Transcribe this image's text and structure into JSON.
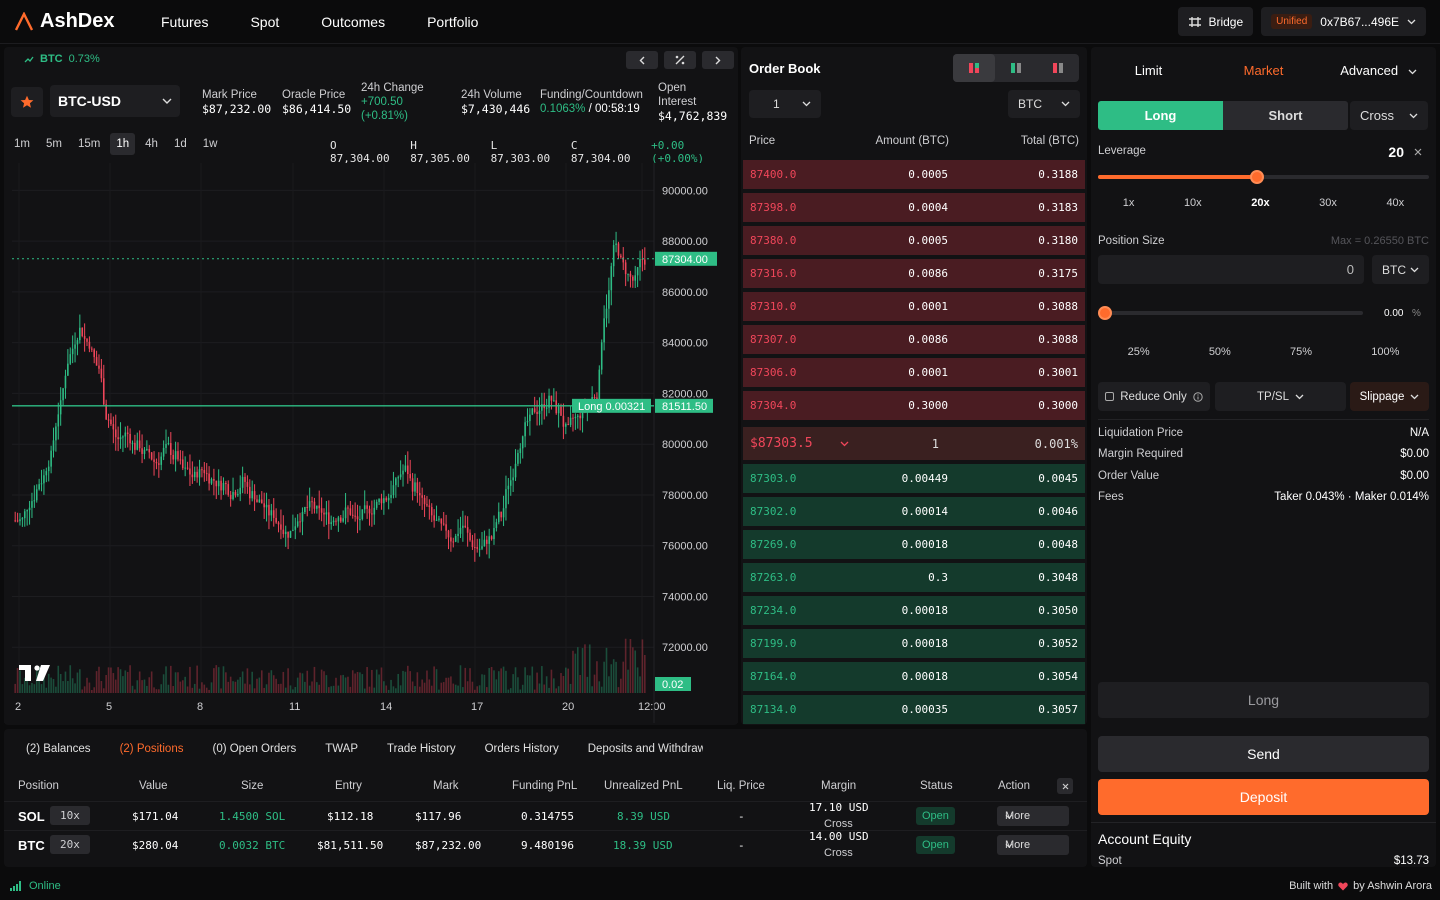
{
  "nav": {
    "brand": "AshDex",
    "links": [
      "Futures",
      "Spot",
      "Outcomes",
      "Portfolio"
    ],
    "bridge_label": "Bridge",
    "unified_label": "Unified",
    "wallet_address": "0x7B67...496E"
  },
  "ticker": {
    "symbol": "BTC",
    "change": "0.73%"
  },
  "market": {
    "pair": "BTC-USD",
    "mark_price_label": "Mark Price",
    "mark_price": "$87,232.00",
    "oracle_price_label": "Oracle Price",
    "oracle_price": "$86,414.50",
    "change_label": "24h Change",
    "change_value": "+700.50",
    "change_pct": "(+0.81%)",
    "volume_label": "24h Volume",
    "volume": "$7,430,446",
    "funding_label": "Funding/Countdown",
    "funding_rate": "0.1063%",
    "countdown": "/ 00:58:19",
    "oi_label_1": "Open",
    "oi_label_2": "Interest",
    "open_interest": "$4,762,839"
  },
  "timeframes": [
    "1m",
    "5m",
    "15m",
    "1h",
    "4h",
    "1d",
    "1w"
  ],
  "active_timeframe": "1h",
  "ohlc": {
    "o": "O 87,304.00",
    "h": "H 87,305.00",
    "l": "L 87,303.00",
    "c": "C 87,304.00",
    "chg": "+0.00 (+0.00%)"
  },
  "chart_data": {
    "type": "candlestick",
    "y_ticks": [
      "90000.00",
      "88000.00",
      "86000.00",
      "84000.00",
      "82000.00",
      "80000.00",
      "78000.00",
      "76000.00",
      "74000.00",
      "72000.00"
    ],
    "ylim": [
      70000,
      91000
    ],
    "x_ticks": [
      "2",
      "5",
      "8",
      "11",
      "14",
      "17",
      "20",
      "12:00"
    ],
    "close": [
      77000,
      77800,
      78600,
      79500,
      81500,
      83500,
      84500,
      84000,
      83000,
      81000,
      80200,
      80400,
      79900,
      79600,
      79300,
      79800,
      79500,
      78900,
      78700,
      79000,
      78600,
      78400,
      78100,
      78500,
      78000,
      77700,
      77200,
      76900,
      76500,
      77200,
      77500,
      77300,
      77100,
      77200,
      77400,
      77000,
      77300,
      77600,
      77900,
      78400,
      79000,
      78300,
      77600,
      77000,
      76600,
      76300,
      76800,
      76100,
      75900,
      76300,
      77200,
      78600,
      80100,
      80900,
      81400,
      81700,
      81300,
      80500,
      81000,
      81500,
      82000,
      85500,
      87800,
      86900,
      86400,
      87300
    ],
    "current_price": "87304.00",
    "current_price_value": 87304,
    "position_line_label": "Long 0.00321",
    "position_line_price": "81511.50",
    "position_line_value": 81511.5,
    "volume_label": "0.02"
  },
  "orderbook": {
    "title": "Order Book",
    "tick": "1",
    "unit": "BTC",
    "headers": {
      "price": "Price",
      "amount": "Amount (BTC)",
      "total": "Total (BTC)"
    },
    "asks": [
      {
        "price": "87400.0",
        "amount": "0.0005",
        "total": "0.3188"
      },
      {
        "price": "87398.0",
        "amount": "0.0004",
        "total": "0.3183"
      },
      {
        "price": "87380.0",
        "amount": "0.0005",
        "total": "0.3180"
      },
      {
        "price": "87316.0",
        "amount": "0.0086",
        "total": "0.3175"
      },
      {
        "price": "87310.0",
        "amount": "0.0001",
        "total": "0.3088"
      },
      {
        "price": "87307.0",
        "amount": "0.0086",
        "total": "0.3088"
      },
      {
        "price": "87306.0",
        "amount": "0.0001",
        "total": "0.3001"
      },
      {
        "price": "87304.0",
        "amount": "0.3000",
        "total": "0.3000"
      }
    ],
    "spread": {
      "price": "$87303.5",
      "value": "1",
      "pct": "0.001%"
    },
    "bids": [
      {
        "price": "87303.0",
        "amount": "0.00449",
        "total": "0.0045"
      },
      {
        "price": "87302.0",
        "amount": "0.00014",
        "total": "0.0046"
      },
      {
        "price": "87269.0",
        "amount": "0.00018",
        "total": "0.0048"
      },
      {
        "price": "87263.0",
        "amount": "0.3",
        "total": "0.3048"
      },
      {
        "price": "87234.0",
        "amount": "0.00018",
        "total": "0.3050"
      },
      {
        "price": "87199.0",
        "amount": "0.00018",
        "total": "0.3052"
      },
      {
        "price": "87164.0",
        "amount": "0.00018",
        "total": "0.3054"
      },
      {
        "price": "87134.0",
        "amount": "0.00035",
        "total": "0.3057"
      }
    ]
  },
  "order": {
    "tabs": [
      "Limit",
      "Market",
      "Advanced"
    ],
    "long_label": "Long",
    "short_label": "Short",
    "margin_mode": "Cross",
    "leverage_label": "Leverage",
    "leverage_value": "20",
    "leverage_fraction": 0.48,
    "leverage_marks": [
      "1x",
      "10x",
      "20x",
      "30x",
      "40x"
    ],
    "position_size_label": "Position Size",
    "max_label": "Max = 0.26550 BTC",
    "size_value": "0",
    "size_unit": "BTC",
    "size_pct": "0.00",
    "size_pct_symbol": "%",
    "pct_marks": [
      "25%",
      "50%",
      "75%",
      "100%"
    ],
    "reduce_only_label": "Reduce Only",
    "tpsl_label": "TP/SL",
    "slippage_label": "Slippage",
    "info": [
      {
        "k": "Liquidation Price",
        "v": "N/A"
      },
      {
        "k": "Margin Required",
        "v": "$0.00"
      },
      {
        "k": "Order Value",
        "v": "$0.00"
      },
      {
        "k": "Fees",
        "v": "Taker 0.043% · Maker 0.014%"
      }
    ],
    "submit_label": "Long",
    "send_label": "Send",
    "deposit_label": "Deposit",
    "equity_label": "Account Equity",
    "spot_label": "Spot",
    "spot_value": "$13.73"
  },
  "bottom": {
    "tabs": [
      "(2) Balances",
      "(2) Positions",
      "(0) Open Orders",
      "TWAP",
      "Trade History",
      "Orders History",
      "Deposits and Withdraw"
    ],
    "headers": [
      "Position",
      "Value",
      "Size",
      "Entry",
      "Mark",
      "Funding PnL",
      "Unrealized PnL",
      "Liq. Price",
      "Margin",
      "Status",
      "Action"
    ],
    "rows": [
      {
        "asset": "SOL",
        "lev": "10x",
        "value": "$171.04",
        "size": "1.4500 SOL",
        "entry": "$112.18",
        "mark": "$117.96",
        "funding": "0.314755",
        "upnl": "8.39 USD",
        "liq": "-",
        "margin": "17.10 USD",
        "margin_mode": "Cross",
        "status": "Open",
        "action": "More"
      },
      {
        "asset": "BTC",
        "lev": "20x",
        "value": "$280.04",
        "size": "0.0032 BTC",
        "entry": "$81,511.50",
        "mark": "$87,232.00",
        "funding": "9.480196",
        "upnl": "18.39 USD",
        "liq": "-",
        "margin": "14.00 USD",
        "margin_mode": "Cross",
        "status": "Open",
        "action": "More"
      }
    ]
  },
  "footer": {
    "status": "Online",
    "built_with": "Built with",
    "author": "by Ashwin Arora"
  },
  "colors": {
    "accent": "#ff6b2c",
    "green": "#2ebd85",
    "red": "#f0465a",
    "bg": "#0b0b0c",
    "panel": "#121214"
  }
}
